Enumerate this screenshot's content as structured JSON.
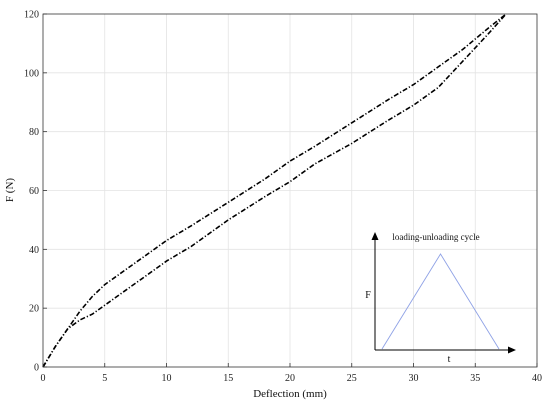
{
  "chart_data": {
    "type": "line",
    "xlabel": "Deflection (mm)",
    "ylabel": "F (N)",
    "xlim": [
      0,
      40
    ],
    "ylim": [
      0,
      120
    ],
    "xticks": [
      0,
      5,
      10,
      15,
      20,
      25,
      30,
      35,
      40
    ],
    "yticks": [
      0,
      20,
      40,
      60,
      80,
      100,
      120
    ],
    "grid": true,
    "series": [
      {
        "line_style": "dash-dot",
        "color": "#000000",
        "x": [
          0,
          1,
          2,
          3,
          4,
          5,
          6,
          7,
          8,
          10,
          12,
          15,
          18,
          20,
          22,
          25,
          28,
          30,
          32,
          34,
          36,
          37.5
        ],
        "y": [
          0,
          7,
          13,
          19,
          24,
          28,
          31,
          34,
          37,
          43,
          48,
          56,
          64,
          70,
          75,
          83,
          91,
          96,
          102,
          108,
          115,
          120
        ]
      },
      {
        "line_style": "dash-dot",
        "color": "#000000",
        "x": [
          0,
          1,
          2,
          3,
          4,
          5,
          6,
          7,
          8,
          10,
          12,
          15,
          18,
          20,
          22,
          25,
          28,
          30,
          32,
          34,
          36,
          37.5
        ],
        "y": [
          0,
          7,
          13,
          16,
          18,
          21,
          24,
          27,
          30,
          36,
          41,
          50,
          58,
          63,
          69,
          76,
          84,
          89,
          95,
          104,
          113,
          120
        ]
      }
    ],
    "inset": {
      "title": "loading-unloading cycle",
      "ylabel": "F",
      "xlabel": "t",
      "line_color": "#8fa2e6",
      "points": [
        [
          0,
          0
        ],
        [
          0.5,
          1
        ],
        [
          1,
          0
        ]
      ]
    }
  }
}
